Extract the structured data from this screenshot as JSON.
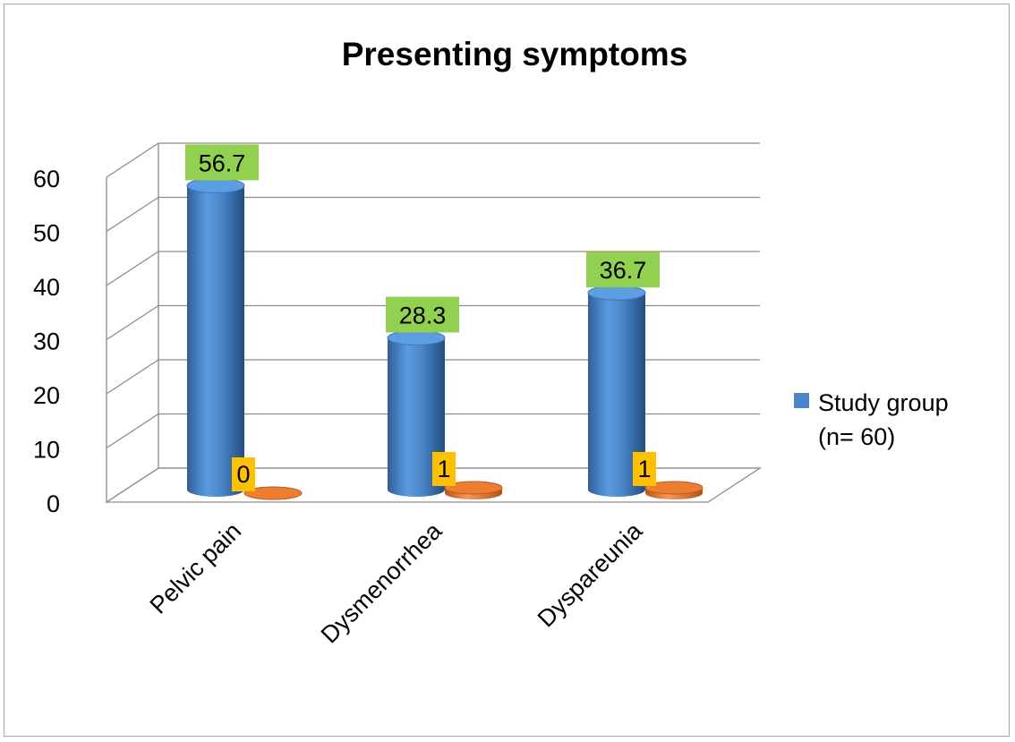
{
  "chart_data": {
    "type": "bar",
    "title": "Presenting symptoms",
    "categories": [
      "Pelvic pain",
      "Dysmenorrhea",
      "Dyspareunia"
    ],
    "series": [
      {
        "name": "Study group (n= 60)",
        "values": [
          56.7,
          28.3,
          36.7
        ],
        "color": "#4a86c8",
        "label_bg": "#92d050"
      },
      {
        "name": "",
        "values": [
          0,
          1,
          1
        ],
        "color": "#ed7d31",
        "label_bg": "#ffc000"
      }
    ],
    "ylim": [
      0,
      60
    ],
    "yticks": [
      0,
      10,
      20,
      30,
      40,
      50,
      60
    ],
    "xlabel": "",
    "ylabel": "",
    "legend": {
      "position": "right",
      "lines": [
        "Study group",
        "(n= 60)"
      ]
    },
    "grid": true,
    "style": "3d-cylinder"
  }
}
